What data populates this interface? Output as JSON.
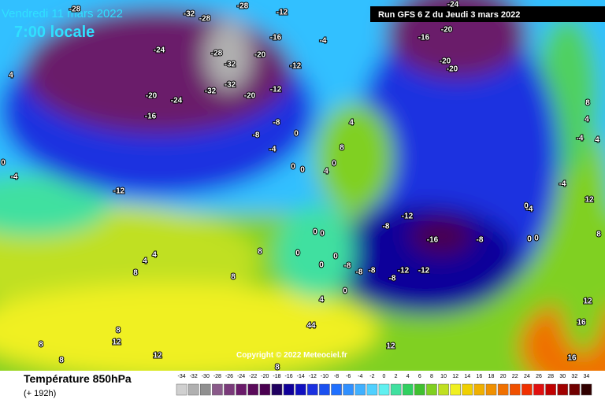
{
  "header": {
    "date": "Vendredi 11 mars 2022",
    "time": "7:00 locale",
    "run": "Run GFS 6 Z du Jeudi 3 mars 2022",
    "copyright": "Copyright © 2022 Meteociel.fr"
  },
  "footer": {
    "title": "Température 850hPa",
    "lead": "(+ 192h)"
  },
  "legend": {
    "ticks": [
      -34,
      -32,
      -30,
      -28,
      -26,
      -24,
      -22,
      -20,
      -18,
      -16,
      -14,
      -12,
      -10,
      -8,
      -6,
      -4,
      -2,
      0,
      2,
      4,
      6,
      8,
      10,
      12,
      14,
      16,
      18,
      20,
      22,
      24,
      26,
      28,
      30,
      32,
      34
    ],
    "colors": [
      "#d0d0d0",
      "#b0b0b0",
      "#909090",
      "#8a5a8a",
      "#7a3a7a",
      "#6a1a6a",
      "#5a0a5a",
      "#4a0050",
      "#200060",
      "#10009a",
      "#1010c0",
      "#1a30e0",
      "#1a50f0",
      "#2070ff",
      "#3090ff",
      "#40b0ff",
      "#50d0ff",
      "#60f0f0",
      "#40e0a0",
      "#30d060",
      "#40c030",
      "#80d020",
      "#c0e020",
      "#f0f020",
      "#f0d000",
      "#f0b000",
      "#f09000",
      "#f07000",
      "#f05000",
      "#f03000",
      "#e01010",
      "#c00000",
      "#a00000",
      "#700000",
      "#300000"
    ]
  },
  "map": {
    "labels": [
      -28,
      -32,
      -28,
      -28,
      -12,
      -24,
      -24,
      -28,
      -32,
      -20,
      -16,
      -12,
      -4,
      -16,
      -20,
      -20,
      -20,
      -20,
      -24,
      -32,
      -32,
      -20,
      -12,
      -16,
      -8,
      -8,
      -4,
      0,
      4,
      8,
      0,
      0,
      4,
      0,
      -12,
      -12,
      -8,
      -16,
      -8,
      0,
      0,
      0,
      0,
      0,
      -8,
      -8,
      -8,
      -8,
      -12,
      -12,
      0,
      4,
      4,
      8,
      8,
      8,
      4,
      44,
      8,
      8,
      12,
      8,
      12,
      12,
      8,
      12,
      16,
      16,
      12,
      8,
      4,
      4,
      -4,
      -4,
      0,
      0,
      0,
      -4,
      8,
      0,
      4,
      -4
    ]
  }
}
